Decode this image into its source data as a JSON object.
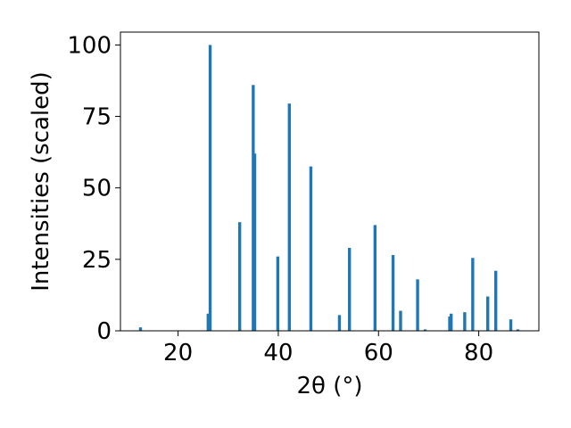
{
  "chart_data": {
    "type": "bar",
    "xlabel": "2θ (°)",
    "ylabel": "Intensities (scaled)",
    "xlim": [
      8.5,
      92
    ],
    "ylim": [
      0,
      104.5
    ],
    "xticks": [
      20,
      40,
      60,
      80
    ],
    "yticks": [
      0,
      25,
      50,
      75,
      100
    ],
    "grid": false,
    "bar_color": "#1f77b4",
    "bar_width": 0.6,
    "x": [
      12.5,
      26.0,
      26.4,
      32.3,
      35.0,
      35.3,
      39.9,
      42.2,
      46.5,
      52.2,
      54.2,
      59.3,
      62.9,
      64.4,
      67.8,
      69.3,
      74.2,
      74.5,
      77.2,
      78.8,
      81.8,
      83.4,
      86.4,
      87.8
    ],
    "values": [
      1.2,
      6,
      100,
      38,
      86,
      62,
      26,
      79.5,
      57.5,
      5.5,
      29,
      37,
      26.5,
      7,
      18,
      0.5,
      5,
      6,
      6.5,
      25.5,
      12,
      21,
      4,
      0.5
    ]
  }
}
